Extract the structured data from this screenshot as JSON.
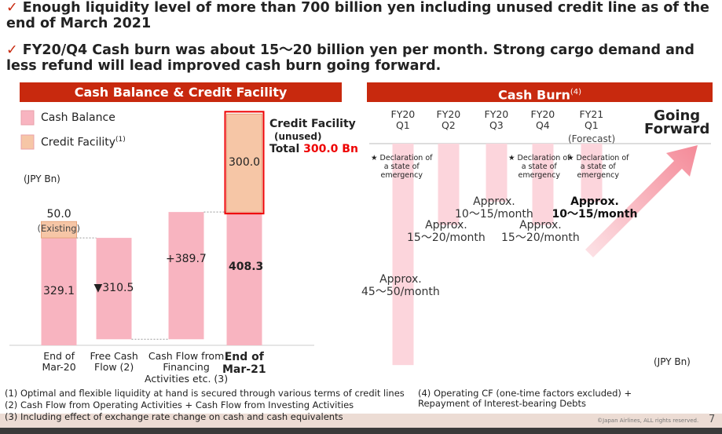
{
  "bullets": [
    "Enough liquidity level of more than 700 billion yen including unused credit line as of the end of March 2021",
    "FY20/Q4 Cash burn was about 15～20 billion yen per month. Strong cargo demand and less refund will lead improved cash burn going forward."
  ],
  "chart_data": [
    {
      "type": "waterfall",
      "title": "Cash Balance & Credit Facility",
      "unit": "(JPY Bn)",
      "categories": [
        "End of\nMar-20",
        "Free Cash\nFlow (2)",
        "Cash Flow from\nFinancing\nActivities etc. (3)",
        "End of\nMar-21"
      ],
      "series": [
        {
          "name": "Cash Balance",
          "color": "#f8b4c0",
          "values": [
            329.1,
            -310.5,
            389.7,
            408.3
          ],
          "value_labels": [
            "329.1",
            "▼310.5",
            "+389.7",
            "408.3"
          ]
        },
        {
          "name": "Credit Facility",
          "note": "(1)",
          "color": "#f6c6a6",
          "values": [
            50,
            null,
            null,
            300
          ],
          "value_labels": [
            "50.0",
            null,
            null,
            "300.0"
          ]
        }
      ],
      "annotation": "(Existing)",
      "callout": {
        "title": "Credit Facility",
        "subtitle": "(unused)",
        "total": "Total",
        "total_value": "300.0 Bn"
      }
    },
    {
      "type": "bar",
      "title": "Cash Burn",
      "title_note": "(4)",
      "unit": "(JPY Bn)",
      "categories": [
        "FY20\nQ1",
        "FY20\nQ2",
        "FY20\nQ3",
        "FY20\nQ4",
        "FY21\nQ1"
      ],
      "category_notes": [
        null,
        null,
        null,
        null,
        "(Forecast)"
      ],
      "events": [
        "★ Declaration of\na state of\nemergency",
        null,
        null,
        "★ Declaration of\na state of\nemergency",
        "★ Declaration of\na state of\nemergency"
      ],
      "series": [
        {
          "color": "#fcd5dc",
          "values": [
            47.5,
            17.5,
            12.5,
            17.5,
            12.5
          ],
          "value_labels": [
            "Approx.\n45～50/month",
            "Approx.\n15～20/month",
            "Approx.\n10～15/month",
            "Approx.\n15～20/month",
            "Approx.\n10～15/month"
          ]
        }
      ],
      "arrow_label": "Going\nForward"
    }
  ],
  "footnotes": [
    "(1) Optimal and flexible liquidity at hand is secured through various terms of credit lines",
    "(2) Cash Flow from Operating Activities + Cash Flow from Investing Activities",
    "(3) Including effect of exchange rate change on cash and cash equivalents",
    "(4) Operating CF (one-time factors excluded) +\n     Repayment of Interest-bearing Debts"
  ],
  "footer": {
    "copyright": "©Japan Airlines, ALL rights reserved.",
    "page": "7"
  }
}
